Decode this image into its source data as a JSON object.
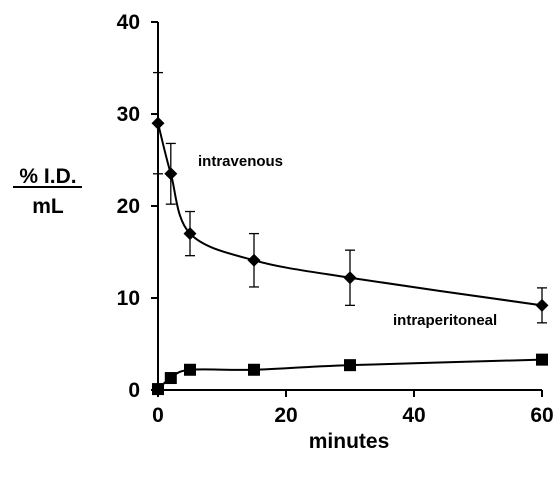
{
  "chart_data": {
    "type": "line",
    "xlabel": "minutes",
    "ylabel_numerator": "% I.D.",
    "ylabel_denominator": "mL",
    "xlim": [
      0,
      60
    ],
    "ylim": [
      0,
      40
    ],
    "x_ticks": [
      "0",
      "20",
      "40",
      "60"
    ],
    "y_ticks": [
      "0",
      "10",
      "20",
      "30",
      "40"
    ],
    "grid": false,
    "series": [
      {
        "name": "intravenous",
        "marker": "diamond",
        "x": [
          0,
          2,
          5,
          15,
          30,
          60
        ],
        "values": [
          29.0,
          23.5,
          17.0,
          14.1,
          12.2,
          9.2
        ],
        "error": [
          5.5,
          3.3,
          2.4,
          2.9,
          3.0,
          1.9
        ]
      },
      {
        "name": "intraperitoneal",
        "marker": "square",
        "x": [
          0,
          2,
          5,
          15,
          30,
          60
        ],
        "values": [
          0.1,
          1.3,
          2.2,
          2.2,
          2.7,
          3.3
        ],
        "error": [
          0,
          0,
          0,
          0,
          0,
          0
        ]
      }
    ]
  }
}
